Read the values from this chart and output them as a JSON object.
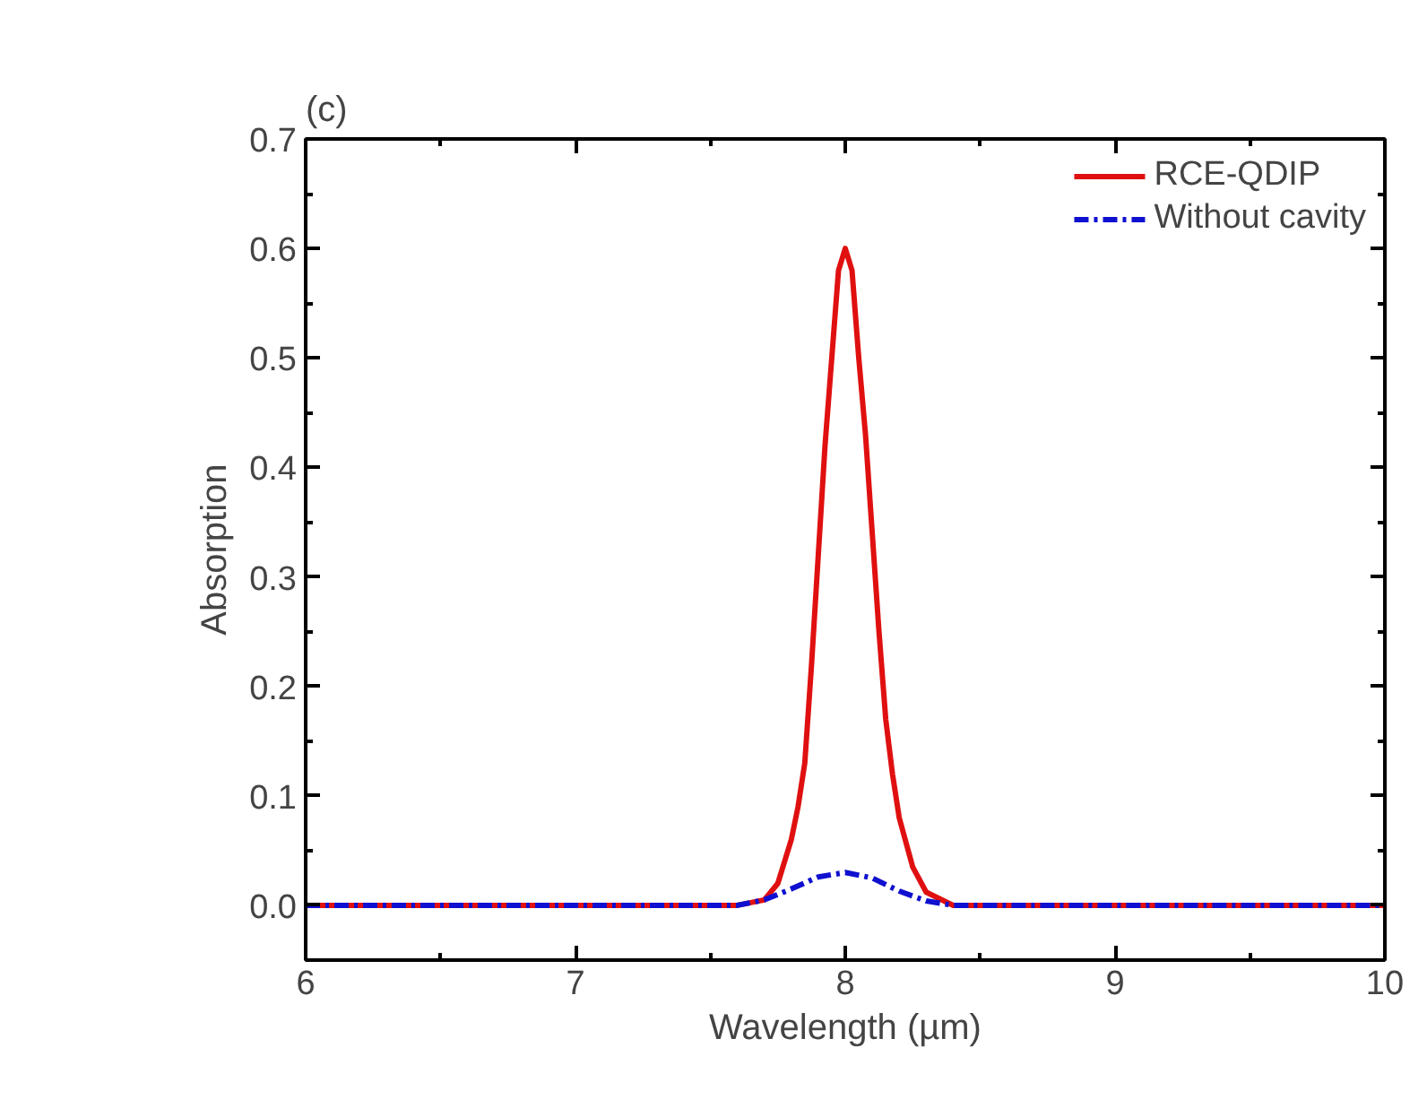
{
  "chart_data": {
    "type": "line",
    "title": "(c)",
    "xlabel": "Wavelength (µm)",
    "ylabel": "Absorption",
    "xlim": [
      6,
      10
    ],
    "xticks": [
      6,
      7,
      8,
      9,
      10
    ],
    "ylim": [
      -0.05,
      0.7
    ],
    "yticks": [
      {
        "value": 0,
        "label": "0.0"
      },
      0.1,
      0.2,
      0.3,
      0.4,
      0.5,
      0.6,
      0.7
    ],
    "grid": false,
    "legend": "top right",
    "series": [
      {
        "name": "RCE-QDIP",
        "color": "#e01010",
        "line_style": "solid",
        "x": [
          6,
          7.6,
          7.7,
          7.75,
          7.8,
          7.825,
          7.85,
          7.875,
          7.9,
          7.925,
          7.95,
          7.975,
          8.0,
          8.025,
          8.05,
          8.075,
          8.1,
          8.125,
          8.15,
          8.175,
          8.2,
          8.25,
          8.3,
          8.4,
          10
        ],
        "values": [
          0,
          0,
          0.005,
          0.02,
          0.06,
          0.09,
          0.13,
          0.22,
          0.32,
          0.42,
          0.5,
          0.58,
          0.6,
          0.58,
          0.5,
          0.43,
          0.34,
          0.25,
          0.17,
          0.12,
          0.08,
          0.035,
          0.012,
          0,
          0
        ]
      },
      {
        "name": "Without cavity",
        "color": "#1010d0",
        "line_style": "dashdot",
        "x": [
          6,
          7.6,
          7.7,
          7.8,
          7.9,
          8.0,
          8.1,
          8.2,
          8.3,
          8.4,
          10
        ],
        "values": [
          0,
          0,
          0.005,
          0.015,
          0.026,
          0.03,
          0.025,
          0.013,
          0.004,
          0,
          0
        ]
      }
    ]
  }
}
